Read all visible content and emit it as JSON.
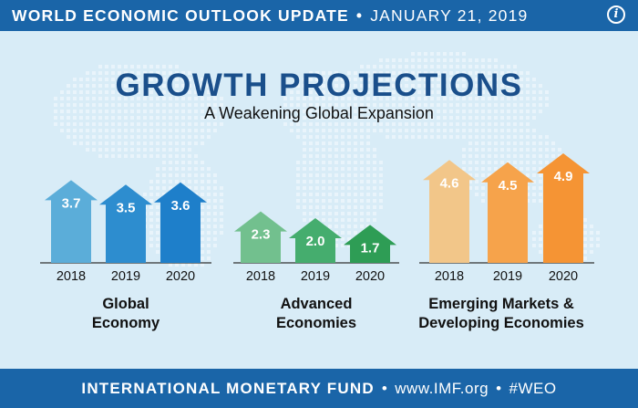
{
  "header": {
    "title": "WORLD ECONOMIC OUTLOOK UPDATE",
    "separator": "•",
    "date": "JANUARY 21, 2019",
    "info_icon": "info-icon"
  },
  "chart_data": {
    "type": "bar",
    "title": "GROWTH PROJECTIONS",
    "subtitle": "A Weakening Global Expansion",
    "ylabel": "",
    "xlabel": "",
    "ylim": [
      0,
      5
    ],
    "groups": [
      {
        "name": "Global Economy",
        "label_lines": [
          "Global",
          "Economy"
        ],
        "categories": [
          "2018",
          "2019",
          "2020"
        ],
        "values": [
          3.7,
          3.5,
          3.6
        ],
        "labels": [
          "3.7",
          "3.5",
          "3.6"
        ],
        "colors": [
          "#5badd9",
          "#2d8dcf",
          "#1e7fca"
        ]
      },
      {
        "name": "Advanced Economies",
        "label_lines": [
          "Advanced",
          "Economies"
        ],
        "categories": [
          "2018",
          "2019",
          "2020"
        ],
        "values": [
          2.3,
          2.0,
          1.7
        ],
        "labels": [
          "2.3",
          "2.0",
          "1.7"
        ],
        "colors": [
          "#72c08e",
          "#45ad6e",
          "#2e9d55"
        ]
      },
      {
        "name": "Emerging Markets & Developing Economies",
        "label_lines": [
          "Emerging Markets &",
          "Developing Economies"
        ],
        "categories": [
          "2018",
          "2019",
          "2020"
        ],
        "values": [
          4.6,
          4.5,
          4.9
        ],
        "labels": [
          "4.6",
          "4.5",
          "4.9"
        ],
        "colors": [
          "#f2c689",
          "#f6a34b",
          "#f59434"
        ]
      }
    ]
  },
  "footer": {
    "org": "INTERNATIONAL MONETARY FUND",
    "separator": "•",
    "url": "www.IMF.org",
    "hashtag": "#WEO"
  },
  "colors": {
    "banner": "#1a65a8",
    "background": "#d8ecf7",
    "title": "#1a4f8b"
  }
}
